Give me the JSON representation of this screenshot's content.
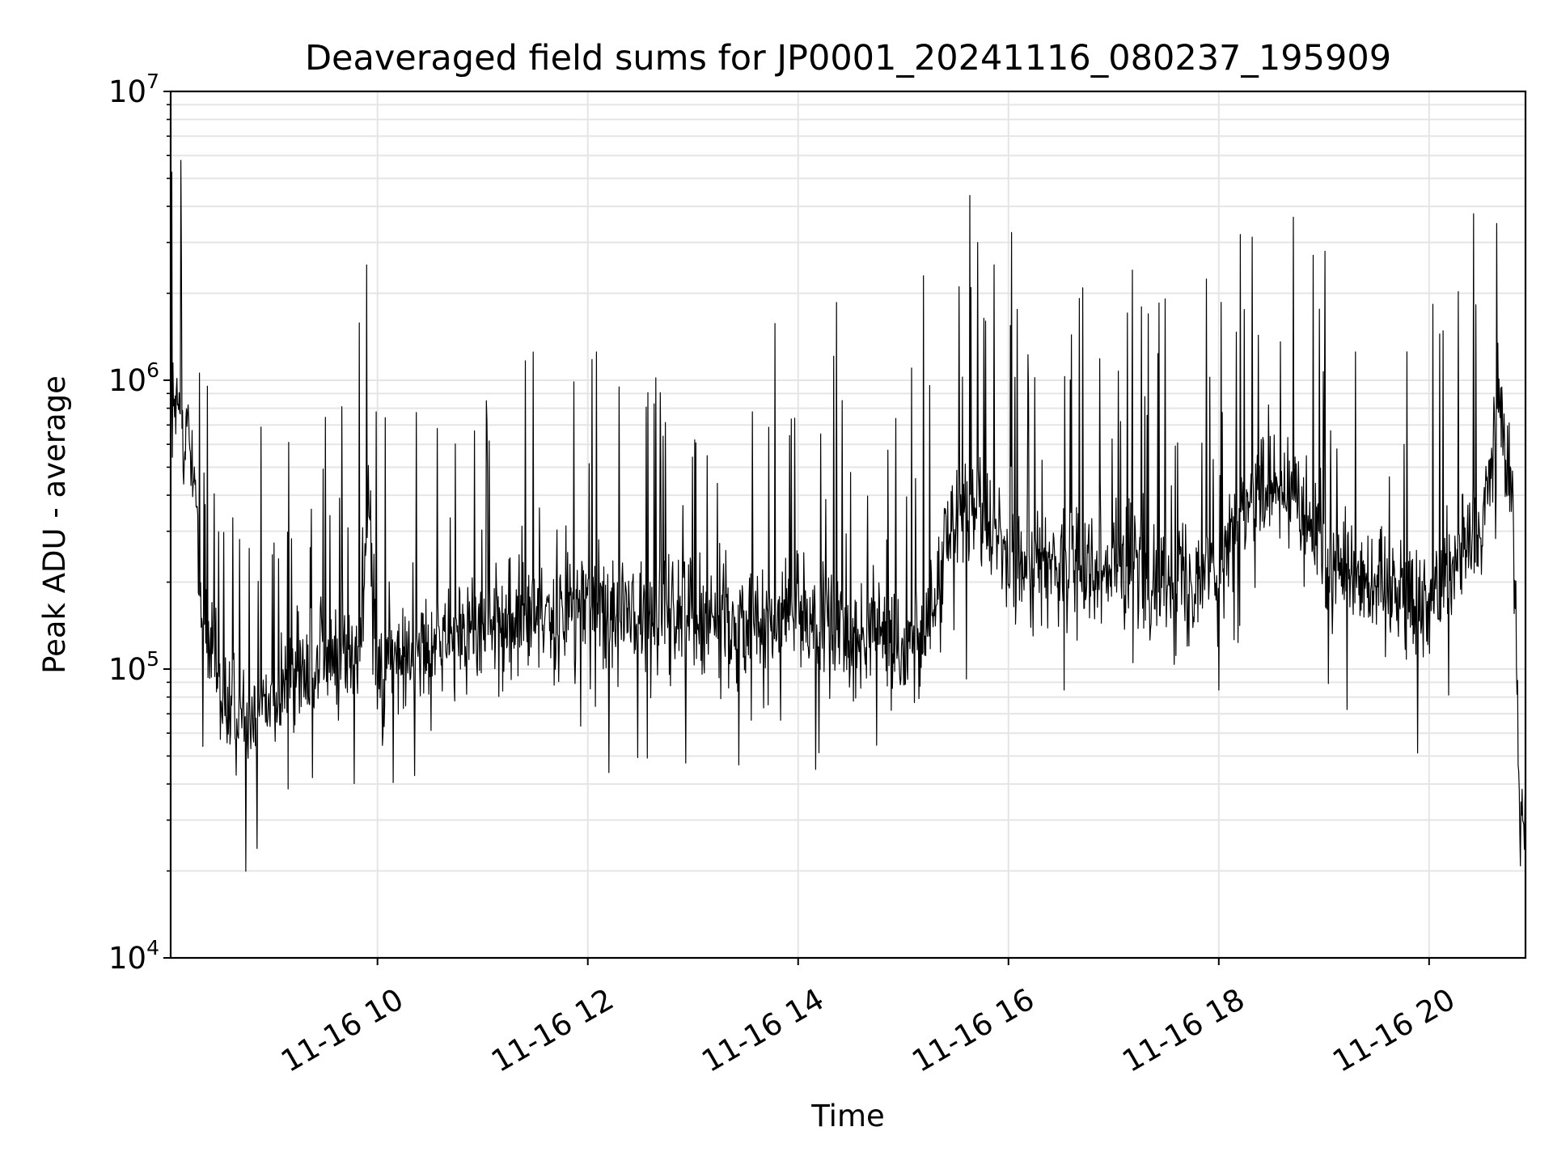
{
  "chart_data": {
    "type": "line",
    "title": "Deaveraged field sums for JP0001_20241116_080237_195909",
    "xlabel": "Time",
    "ylabel": "Peak ADU - average",
    "yscale": "log",
    "grid": true,
    "legend": "none",
    "line_color": "#000000",
    "grid_color": "#e5e5e5",
    "xlim": [
      "2024-11-16 08:02",
      "2024-11-16 20:55"
    ],
    "ylim": [
      10000,
      10000000
    ],
    "x_ticks": [
      {
        "value": "2024-11-16 10:00",
        "label": "11-16 10"
      },
      {
        "value": "2024-11-16 12:00",
        "label": "11-16 12"
      },
      {
        "value": "2024-11-16 14:00",
        "label": "11-16 14"
      },
      {
        "value": "2024-11-16 16:00",
        "label": "11-16 16"
      },
      {
        "value": "2024-11-16 18:00",
        "label": "11-16 18"
      },
      {
        "value": "2024-11-16 20:00",
        "label": "11-16 20"
      }
    ],
    "y_ticks": [
      {
        "value": 10000,
        "base": "10",
        "exp": "4"
      },
      {
        "value": 100000,
        "base": "10",
        "exp": "5"
      },
      {
        "value": 1000000,
        "base": "10",
        "exp": "6"
      },
      {
        "value": 10000000,
        "base": "10",
        "exp": "7"
      }
    ],
    "series": [
      {
        "x": [
          "2024-11-16 08:02",
          "2024-11-16 08:05",
          "2024-11-16 08:10",
          "2024-11-16 08:15",
          "2024-11-16 08:20",
          "2024-11-16 08:25",
          "2024-11-16 08:30",
          "2024-11-16 08:40",
          "2024-11-16 08:50",
          "2024-11-16 09:00",
          "2024-11-16 09:10",
          "2024-11-16 09:20",
          "2024-11-16 09:30",
          "2024-11-16 09:40",
          "2024-11-16 09:50",
          "2024-11-16 09:55",
          "2024-11-16 10:00",
          "2024-11-16 10:15",
          "2024-11-16 10:30",
          "2024-11-16 10:45",
          "2024-11-16 11:00",
          "2024-11-16 11:15",
          "2024-11-16 11:30",
          "2024-11-16 11:45",
          "2024-11-16 12:00",
          "2024-11-16 12:15",
          "2024-11-16 12:30",
          "2024-11-16 12:45",
          "2024-11-16 13:00",
          "2024-11-16 13:10",
          "2024-11-16 13:30",
          "2024-11-16 13:45",
          "2024-11-16 14:00",
          "2024-11-16 14:15",
          "2024-11-16 14:30",
          "2024-11-16 14:45",
          "2024-11-16 15:00",
          "2024-11-16 15:15",
          "2024-11-16 15:25",
          "2024-11-16 15:30",
          "2024-11-16 15:45",
          "2024-11-16 15:55",
          "2024-11-16 16:00",
          "2024-11-16 16:15",
          "2024-11-16 16:30",
          "2024-11-16 16:45",
          "2024-11-16 17:00",
          "2024-11-16 17:15",
          "2024-11-16 17:30",
          "2024-11-16 17:45",
          "2024-11-16 18:00",
          "2024-11-16 18:15",
          "2024-11-16 18:30",
          "2024-11-16 18:45",
          "2024-11-16 19:00",
          "2024-11-16 19:15",
          "2024-11-16 19:30",
          "2024-11-16 19:45",
          "2024-11-16 20:00",
          "2024-11-16 20:15",
          "2024-11-16 20:30",
          "2024-11-16 20:35",
          "2024-11-16 20:40",
          "2024-11-16 20:48",
          "2024-11-16 20:52",
          "2024-11-16 20:55"
        ],
        "values": [
          600000,
          750000,
          700000,
          500000,
          140000,
          110000,
          80000,
          70000,
          75000,
          80000,
          90000,
          100000,
          105000,
          110000,
          110000,
          500000,
          100000,
          110000,
          120000,
          130000,
          140000,
          145000,
          150000,
          160000,
          170000,
          160000,
          150000,
          155000,
          160000,
          150000,
          140000,
          150000,
          155000,
          140000,
          135000,
          130000,
          125000,
          130000,
          300000,
          350000,
          320000,
          300000,
          250000,
          220000,
          230000,
          250000,
          230000,
          220000,
          200000,
          210000,
          230000,
          350000,
          400000,
          380000,
          250000,
          220000,
          200000,
          180000,
          170000,
          250000,
          300000,
          500000,
          800000,
          400000,
          30000,
          40000
        ]
      }
    ]
  }
}
